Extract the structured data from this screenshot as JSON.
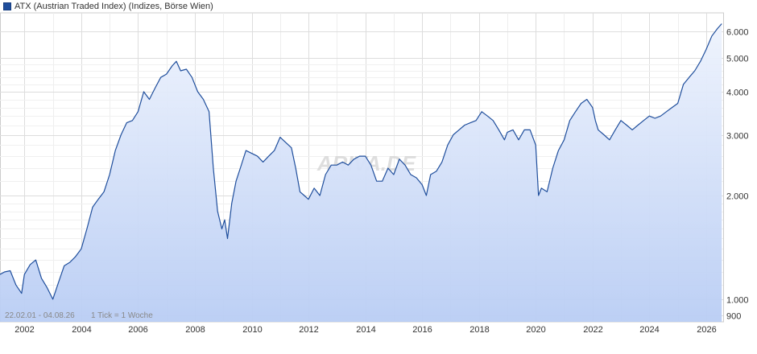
{
  "chart_data": {
    "type": "area",
    "legend": "ATX (Austrian Traded Index) (Indizes, Börse Wien)",
    "watermark": "ARIVA.DE",
    "range_note": "22.02.01 - 04.08.26",
    "tick_note": "1 Tick = 1 Woche",
    "y_scale": "log",
    "ylim": [
      860,
      6700
    ],
    "y_ticks": [
      {
        "value": 900,
        "label": "900"
      },
      {
        "value": 1000,
        "label": "1.000"
      },
      {
        "value": 2000,
        "label": "2.000"
      },
      {
        "value": 3000,
        "label": "3.000"
      },
      {
        "value": 4000,
        "label": "4.000"
      },
      {
        "value": 5000,
        "label": "5.000"
      },
      {
        "value": 6000,
        "label": "6.000"
      }
    ],
    "xlim": [
      2001.14,
      2026.6
    ],
    "x_ticks": [
      "2002",
      "2004",
      "2006",
      "2008",
      "2010",
      "2012",
      "2014",
      "2016",
      "2018",
      "2020",
      "2022",
      "2024",
      "2026"
    ],
    "grid": true,
    "colors": {
      "line": "#1f4e9c",
      "fill_top": "#eef3fd",
      "fill_bottom": "#b9cdf4",
      "grid": "#dddddd"
    },
    "series": [
      {
        "x": [
          2001.14,
          2001.3,
          2001.5,
          2001.7,
          2001.9,
          2002.0,
          2002.2,
          2002.4,
          2002.6,
          2002.8,
          2003.0,
          2003.2,
          2003.4,
          2003.6,
          2003.8,
          2004.0,
          2004.2,
          2004.4,
          2004.6,
          2004.8,
          2005.0,
          2005.2,
          2005.4,
          2005.6,
          2005.8,
          2006.0,
          2006.2,
          2006.4,
          2006.6,
          2006.8,
          2007.0,
          2007.2,
          2007.35,
          2007.5,
          2007.7,
          2007.9,
          2008.1,
          2008.3,
          2008.5,
          2008.65,
          2008.8,
          2008.95,
          2009.05,
          2009.15,
          2009.3,
          2009.45,
          2009.6,
          2009.8,
          2010.0,
          2010.2,
          2010.4,
          2010.6,
          2010.8,
          2011.0,
          2011.2,
          2011.4,
          2011.55,
          2011.7,
          2011.85,
          2012.0,
          2012.2,
          2012.4,
          2012.6,
          2012.8,
          2013.0,
          2013.2,
          2013.4,
          2013.6,
          2013.8,
          2014.0,
          2014.2,
          2014.4,
          2014.6,
          2014.8,
          2015.0,
          2015.2,
          2015.4,
          2015.6,
          2015.8,
          2016.0,
          2016.15,
          2016.3,
          2016.5,
          2016.7,
          2016.9,
          2017.1,
          2017.3,
          2017.5,
          2017.7,
          2017.9,
          2018.1,
          2018.3,
          2018.5,
          2018.7,
          2018.9,
          2019.0,
          2019.2,
          2019.4,
          2019.6,
          2019.8,
          2020.0,
          2020.1,
          2020.2,
          2020.4,
          2020.6,
          2020.8,
          2021.0,
          2021.2,
          2021.4,
          2021.6,
          2021.8,
          2022.0,
          2022.1,
          2022.2,
          2022.4,
          2022.6,
          2022.8,
          2023.0,
          2023.2,
          2023.4,
          2023.6,
          2023.8,
          2024.0,
          2024.2,
          2024.4,
          2024.6,
          2024.8,
          2025.0,
          2025.2,
          2025.4,
          2025.6,
          2025.8,
          2026.0,
          2026.2,
          2026.4,
          2026.55
        ],
        "y": [
          1180,
          1200,
          1210,
          1100,
          1040,
          1180,
          1260,
          1300,
          1150,
          1080,
          1000,
          1120,
          1250,
          1280,
          1330,
          1400,
          1600,
          1850,
          1950,
          2050,
          2300,
          2700,
          3000,
          3250,
          3300,
          3500,
          4000,
          3800,
          4100,
          4400,
          4500,
          4750,
          4900,
          4600,
          4650,
          4400,
          4000,
          3800,
          3500,
          2400,
          1800,
          1600,
          1700,
          1500,
          1900,
          2200,
          2400,
          2700,
          2650,
          2600,
          2500,
          2600,
          2700,
          2950,
          2850,
          2750,
          2400,
          2050,
          2000,
          1950,
          2100,
          2000,
          2300,
          2450,
          2450,
          2500,
          2450,
          2550,
          2600,
          2600,
          2450,
          2200,
          2200,
          2400,
          2300,
          2550,
          2450,
          2300,
          2250,
          2150,
          2000,
          2300,
          2350,
          2500,
          2800,
          3000,
          3100,
          3200,
          3250,
          3300,
          3500,
          3400,
          3300,
          3100,
          2900,
          3050,
          3100,
          2900,
          3100,
          3100,
          2800,
          2000,
          2100,
          2050,
          2400,
          2700,
          2900,
          3300,
          3500,
          3700,
          3800,
          3600,
          3300,
          3100,
          3000,
          2900,
          3100,
          3300,
          3200,
          3100,
          3200,
          3300,
          3400,
          3350,
          3400,
          3500,
          3600,
          3700,
          4200,
          4400,
          4600,
          4900,
          5300,
          5800,
          6100,
          6300
        ]
      }
    ]
  }
}
